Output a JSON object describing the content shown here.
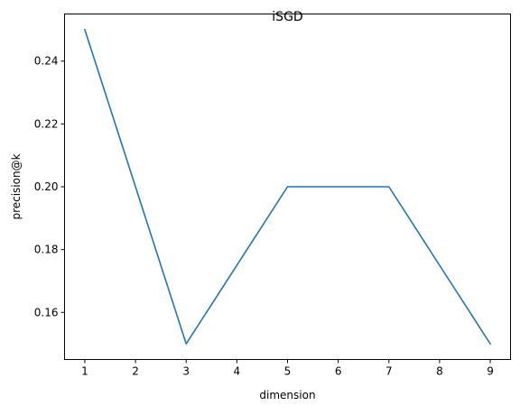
{
  "chart_data": {
    "type": "line",
    "title": "iSGD",
    "xlabel": "dimension",
    "ylabel": "precision@k",
    "xlim": [
      0.6,
      9.4
    ],
    "ylim": [
      0.145,
      0.255
    ],
    "xticks": [
      1,
      2,
      3,
      4,
      5,
      6,
      7,
      8,
      9
    ],
    "yticks": [
      0.16,
      0.18,
      0.2,
      0.22,
      0.24
    ],
    "ytick_labels": [
      "0.16",
      "0.18",
      "0.20",
      "0.22",
      "0.24"
    ],
    "grid": false,
    "series": [
      {
        "color": "#1f77b4",
        "x": [
          1,
          3,
          5,
          7,
          9
        ],
        "y": [
          0.25,
          0.15,
          0.2,
          0.2,
          0.15
        ]
      }
    ]
  }
}
